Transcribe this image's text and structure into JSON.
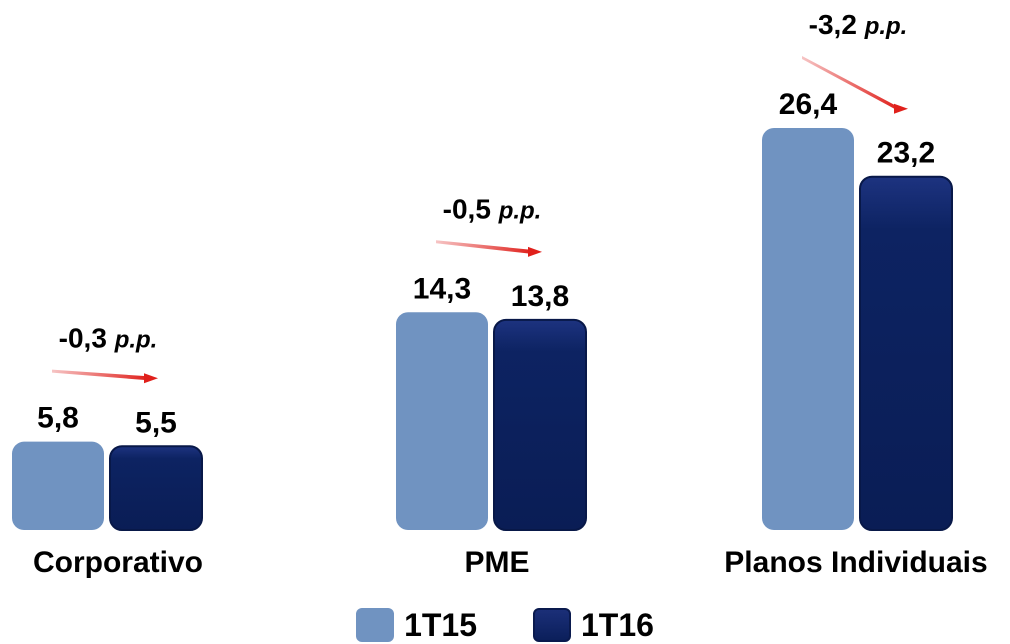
{
  "chart_data": {
    "type": "bar",
    "categories": [
      "Corporativo",
      "PME",
      "Planos Individuais"
    ],
    "series": [
      {
        "name": "1T15",
        "values": [
          5.8,
          14.3,
          26.4
        ],
        "labels": [
          "5,8",
          "14,3",
          "26,4"
        ]
      },
      {
        "name": "1T16",
        "values": [
          5.5,
          13.8,
          23.2
        ],
        "labels": [
          "5,5",
          "13,8",
          "23,2"
        ]
      }
    ],
    "annotations": [
      {
        "category": "Corporativo",
        "value": "-0,3",
        "unit": "p.p."
      },
      {
        "category": "PME",
        "value": "-0,5",
        "unit": "p.p."
      },
      {
        "category": "Planos Individuais",
        "value": "-3,2",
        "unit": "p.p."
      }
    ],
    "title": "",
    "xlabel": "",
    "ylabel": "",
    "ylim": [
      0,
      26.4
    ],
    "grid": false,
    "legend_position": "bottom",
    "colors": {
      "1T15": "#7093c1",
      "1T16": "#0b1f5b",
      "arrow": "#e0201b"
    }
  }
}
